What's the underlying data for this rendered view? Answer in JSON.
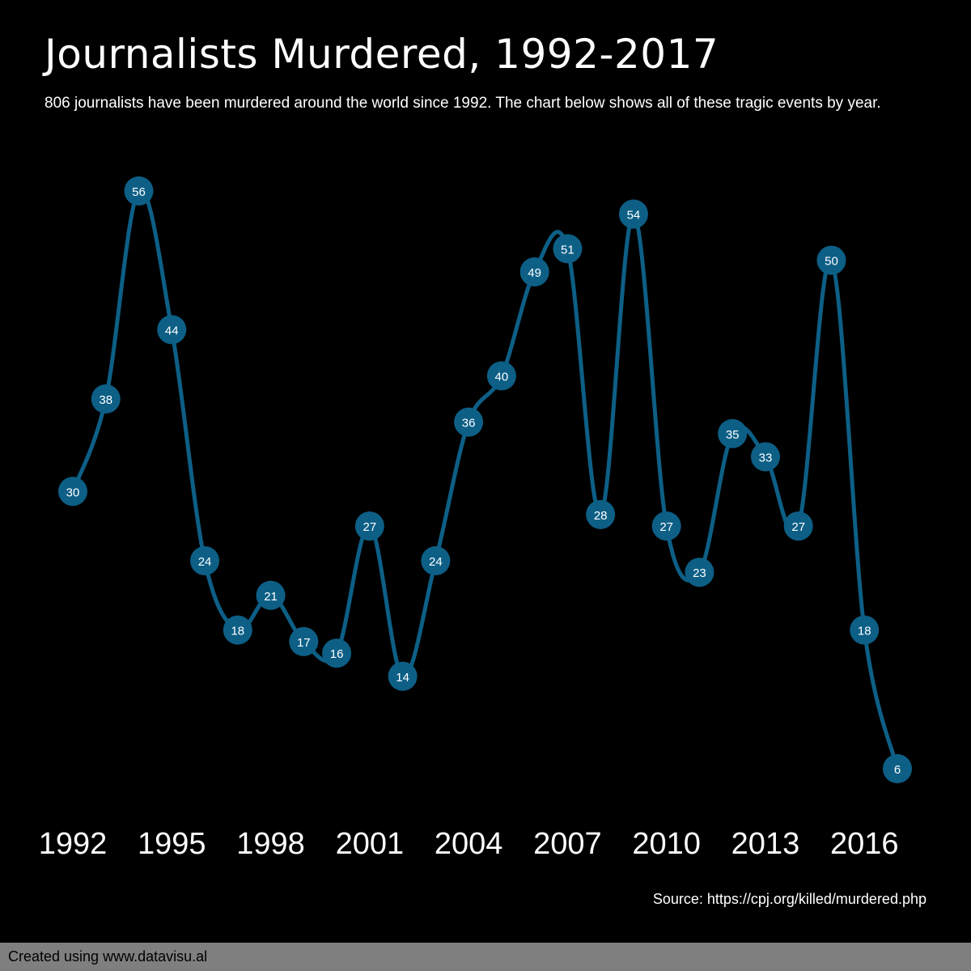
{
  "header": {
    "title": "Journalists Murdered, 1992-2017",
    "subtitle": "806 journalists have been murdered around the world since 1992. The chart below shows all of these tragic events by year."
  },
  "source": "Source: https://cpj.org/killed/murdered.php",
  "footer": {
    "credit": "Created using www.datavisu.al"
  },
  "colors": {
    "background": "#000000",
    "line": "#0d5f86",
    "marker": "#0d5f86",
    "label": "#ffffff",
    "footer": "#7f7f7f"
  },
  "chart_data": {
    "type": "line",
    "title": "Journalists Murdered, 1992-2017",
    "xlabel": "",
    "ylabel": "",
    "x": [
      1992,
      1993,
      1994,
      1995,
      1996,
      1997,
      1998,
      1999,
      2000,
      2001,
      2002,
      2003,
      2004,
      2005,
      2006,
      2007,
      2008,
      2009,
      2010,
      2011,
      2012,
      2013,
      2014,
      2015,
      2016,
      2017
    ],
    "values": [
      30,
      38,
      56,
      44,
      24,
      18,
      21,
      17,
      16,
      27,
      14,
      24,
      36,
      40,
      49,
      51,
      28,
      54,
      27,
      23,
      35,
      33,
      27,
      50,
      18,
      6
    ],
    "x_ticks": [
      "1992",
      "1995",
      "1998",
      "2001",
      "2004",
      "2007",
      "2010",
      "2013",
      "2016"
    ],
    "ylim": [
      6,
      56
    ],
    "curve": "smooth",
    "data_labels": true,
    "grid": false,
    "legend": "none"
  }
}
